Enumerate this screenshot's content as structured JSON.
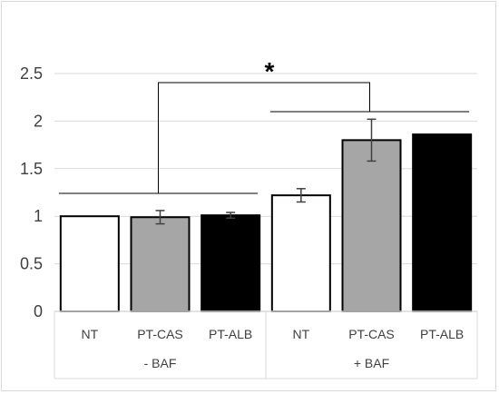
{
  "chart_data": {
    "type": "bar",
    "title": "",
    "xlabel": "",
    "ylabel": "",
    "ylim": [
      0,
      2.5
    ],
    "yticks": [
      "0",
      "0.5",
      "1",
      "1.5",
      "2",
      "2.5"
    ],
    "grid": true,
    "legend": "none",
    "groups": [
      {
        "label": "- BAF",
        "bars": [
          {
            "category": "NT",
            "value": 1.0,
            "error": 0.0,
            "color": "#ffffff"
          },
          {
            "category": "PT-CAS",
            "value": 0.99,
            "error": 0.07,
            "color": "#a6a6a6"
          },
          {
            "category": "PT-ALB",
            "value": 1.01,
            "error": 0.03,
            "color": "#000000"
          }
        ]
      },
      {
        "label": "+ BAF",
        "bars": [
          {
            "category": "NT",
            "value": 1.22,
            "error": 0.07,
            "color": "#ffffff"
          },
          {
            "category": "PT-CAS",
            "value": 1.8,
            "error": 0.22,
            "color": "#a6a6a6"
          },
          {
            "category": "PT-ALB",
            "value": 1.86,
            "error": 0.0,
            "color": "#000000"
          }
        ]
      }
    ],
    "annotations": {
      "significance_marker": "*"
    }
  }
}
